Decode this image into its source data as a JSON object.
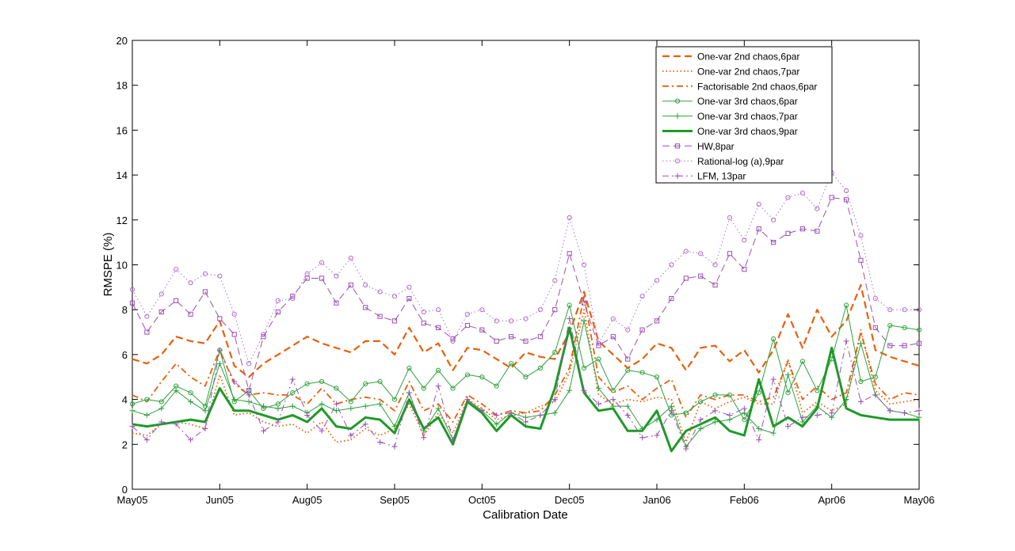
{
  "chart_data": {
    "type": "line",
    "title": "",
    "xlabel": "Calibration Date",
    "ylabel": "RMSPE (%)",
    "ylim": [
      0,
      20
    ],
    "xlim": [
      0,
      54
    ],
    "yticks": [
      0,
      2,
      4,
      6,
      8,
      10,
      12,
      14,
      16,
      18,
      20
    ],
    "xticks": [
      {
        "pos": 0,
        "label": "May05"
      },
      {
        "pos": 6,
        "label": "Jun05"
      },
      {
        "pos": 12,
        "label": "Aug05"
      },
      {
        "pos": 18,
        "label": "Sep05"
      },
      {
        "pos": 24,
        "label": "Oct05"
      },
      {
        "pos": 30,
        "label": "Dec05"
      },
      {
        "pos": 36,
        "label": "Jan06"
      },
      {
        "pos": 42,
        "label": "Feb06"
      },
      {
        "pos": 48,
        "label": "Apr06"
      },
      {
        "pos": 54,
        "label": "May06"
      }
    ],
    "x": [
      0,
      1,
      2,
      3,
      4,
      5,
      6,
      7,
      8,
      9,
      10,
      11,
      12,
      13,
      14,
      15,
      16,
      17,
      18,
      19,
      20,
      21,
      22,
      23,
      24,
      25,
      26,
      27,
      28,
      29,
      30,
      31,
      32,
      33,
      34,
      35,
      36,
      37,
      38,
      39,
      40,
      41,
      42,
      43,
      44,
      45,
      46,
      47,
      48,
      49,
      50,
      51,
      52,
      53,
      54
    ],
    "legend_position": "top-right",
    "grid": false,
    "series": [
      {
        "name": "One-var 2nd chaos,6par",
        "color": "#e8600c",
        "dash": "dashed",
        "marker": "none",
        "width": 2.2,
        "values": [
          5.8,
          5.6,
          6.0,
          6.8,
          6.6,
          6.5,
          7.5,
          5.5,
          5.0,
          5.6,
          6.0,
          6.4,
          6.8,
          6.5,
          6.3,
          6.1,
          6.6,
          6.6,
          6.0,
          7.2,
          6.1,
          6.5,
          5.3,
          6.3,
          6.2,
          5.8,
          5.4,
          6.1,
          5.9,
          5.8,
          7.0,
          8.8,
          6.6,
          6.0,
          5.4,
          5.8,
          6.5,
          6.3,
          5.3,
          6.3,
          6.4,
          5.7,
          6.2,
          5.2,
          6.2,
          7.8,
          6.3,
          8.0,
          6.8,
          7.5,
          9.1,
          6.2,
          5.9,
          5.7,
          5.5
        ]
      },
      {
        "name": "One-var 2nd chaos,7par",
        "color": "#e8600c",
        "dash": "dotted",
        "marker": "none",
        "width": 1.8,
        "values": [
          2.5,
          2.4,
          2.9,
          3.0,
          2.9,
          2.7,
          5.1,
          3.3,
          3.4,
          3.0,
          2.8,
          2.9,
          2.5,
          3.0,
          2.1,
          2.2,
          2.7,
          2.4,
          2.7,
          3.8,
          2.4,
          3.4,
          2.5,
          4.0,
          3.6,
          3.1,
          3.3,
          3.4,
          3.7,
          3.9,
          5.2,
          8.0,
          4.2,
          3.8,
          4.0,
          3.9,
          4.1,
          4.0,
          2.1,
          3.9,
          3.6,
          3.9,
          4.1,
          3.8,
          3.8,
          5.8,
          3.4,
          3.9,
          3.5,
          3.8,
          7.1,
          4.4,
          3.8,
          3.9,
          4.0
        ]
      },
      {
        "name": "Factorisable 2nd chaos,6par",
        "color": "#e8600c",
        "dash": "dashdot",
        "marker": "none",
        "width": 1.8,
        "values": [
          4.2,
          3.9,
          4.8,
          5.6,
          5.0,
          4.6,
          6.2,
          4.7,
          4.2,
          4.3,
          4.2,
          4.2,
          3.8,
          4.5,
          3.8,
          4.0,
          4.1,
          4.0,
          3.5,
          4.8,
          3.5,
          3.8,
          3.0,
          4.2,
          3.8,
          3.3,
          3.5,
          3.4,
          3.5,
          4.2,
          5.4,
          8.6,
          5.0,
          4.3,
          4.6,
          4.0,
          4.5,
          4.9,
          3.2,
          4.2,
          4.0,
          4.2,
          4.2,
          3.9,
          4.1,
          5.7,
          4.0,
          4.6,
          4.0,
          4.3,
          7.0,
          4.7,
          4.0,
          4.3,
          4.2
        ]
      },
      {
        "name": "One-var 3rd chaos,6par",
        "color": "#2ea23c",
        "dash": "solid",
        "marker": "circle",
        "width": 1.0,
        "values": [
          3.8,
          4.0,
          3.9,
          4.6,
          4.3,
          3.7,
          6.2,
          3.9,
          4.4,
          3.6,
          3.8,
          4.3,
          4.7,
          4.8,
          4.5,
          3.9,
          4.7,
          4.8,
          4.0,
          5.4,
          4.5,
          5.3,
          4.5,
          5.1,
          5.0,
          4.6,
          5.6,
          5.0,
          5.4,
          6.1,
          8.2,
          5.4,
          5.8,
          4.4,
          5.3,
          5.2,
          5.0,
          3.3,
          3.4,
          3.9,
          4.2,
          4.2,
          3.1,
          4.3,
          6.7,
          4.3,
          5.7,
          4.4,
          5.8,
          8.2,
          4.8,
          5.0,
          7.3,
          7.2,
          7.1
        ]
      },
      {
        "name": "One-var 3rd chaos,7par",
        "color": "#2ea23c",
        "dash": "solid",
        "marker": "plus",
        "width": 1.0,
        "values": [
          3.5,
          3.3,
          3.6,
          4.4,
          3.9,
          3.5,
          5.6,
          4.0,
          3.9,
          3.7,
          3.6,
          3.7,
          3.4,
          3.8,
          3.5,
          3.6,
          3.7,
          3.8,
          2.8,
          4.3,
          2.6,
          3.6,
          2.2,
          4.0,
          3.5,
          2.9,
          3.4,
          3.2,
          3.3,
          3.4,
          4.4,
          7.5,
          4.5,
          3.7,
          3.7,
          2.7,
          3.1,
          3.7,
          1.9,
          2.7,
          3.0,
          3.1,
          3.4,
          2.7,
          2.5,
          5.1,
          3.0,
          3.7,
          3.2,
          4.0,
          6.5,
          4.2,
          3.5,
          3.4,
          3.2
        ]
      },
      {
        "name": "One-var 3rd chaos,9par",
        "color": "#1e9a28",
        "dash": "solid",
        "marker": "none",
        "width": 3.0,
        "values": [
          2.9,
          2.8,
          2.9,
          3.0,
          3.1,
          3.0,
          4.5,
          3.5,
          3.5,
          3.3,
          3.1,
          3.3,
          3.0,
          3.6,
          2.8,
          2.7,
          3.2,
          3.1,
          2.5,
          4.0,
          2.7,
          3.2,
          2.0,
          3.9,
          3.4,
          2.6,
          3.3,
          2.8,
          2.7,
          4.5,
          7.2,
          4.3,
          3.5,
          3.6,
          2.6,
          2.6,
          3.5,
          1.7,
          2.6,
          2.9,
          3.2,
          2.6,
          2.4,
          4.9,
          2.8,
          3.2,
          2.8,
          3.6,
          6.3,
          3.6,
          3.3,
          3.2,
          3.1,
          3.1,
          3.1
        ]
      },
      {
        "name": "HW,8par",
        "color": "#9a4fb5",
        "dash": "dashed",
        "marker": "square",
        "width": 1.0,
        "values": [
          8.3,
          7.0,
          7.9,
          8.4,
          7.8,
          8.8,
          7.6,
          6.9,
          4.4,
          6.8,
          7.9,
          8.6,
          9.4,
          9.4,
          8.3,
          9.1,
          8.1,
          7.7,
          7.5,
          8.5,
          7.4,
          7.2,
          6.7,
          7.3,
          7.1,
          6.6,
          6.8,
          6.6,
          6.8,
          8.0,
          10.5,
          8.3,
          6.4,
          6.8,
          5.8,
          7.1,
          7.5,
          8.5,
          9.4,
          9.5,
          9.1,
          10.5,
          9.8,
          11.6,
          11.0,
          11.4,
          11.6,
          11.5,
          13.0,
          12.9,
          10.2,
          7.2,
          6.4,
          6.4,
          6.5
        ]
      },
      {
        "name": "Rational-log (a),9par",
        "color": "#b06ed0",
        "dash": "dotted",
        "marker": "circle",
        "width": 1.0,
        "values": [
          8.9,
          7.7,
          8.7,
          9.8,
          9.2,
          9.6,
          9.5,
          7.8,
          5.6,
          6.9,
          8.4,
          8.5,
          9.6,
          10.1,
          9.5,
          10.3,
          9.1,
          8.8,
          8.6,
          9.0,
          7.9,
          8.0,
          6.6,
          7.8,
          8.0,
          7.5,
          7.5,
          7.6,
          8.0,
          9.3,
          12.1,
          10.0,
          6.5,
          7.6,
          7.1,
          8.6,
          9.3,
          10.0,
          10.6,
          10.5,
          10.0,
          12.1,
          11.1,
          12.7,
          12.0,
          13.0,
          13.2,
          12.5,
          14.1,
          13.3,
          11.3,
          8.5,
          8.0,
          8.0,
          8.0
        ]
      },
      {
        "name": "LFM, 13par",
        "color": "#9a4fb5",
        "dash": "dashdot",
        "marker": "plus",
        "width": 1.0,
        "values": [
          2.8,
          2.2,
          3.0,
          2.9,
          2.2,
          2.7,
          6.2,
          4.8,
          4.2,
          2.6,
          3.0,
          4.9,
          3.3,
          2.6,
          3.8,
          2.4,
          2.9,
          2.1,
          1.9,
          4.3,
          2.3,
          4.6,
          2.2,
          4.0,
          3.5,
          3.3,
          3.4,
          3.0,
          3.3,
          4.0,
          7.6,
          4.4,
          3.8,
          4.0,
          3.3,
          2.3,
          2.4,
          3.5,
          1.8,
          3.1,
          3.5,
          3.3,
          3.6,
          2.2,
          4.9,
          2.8,
          3.2,
          3.3,
          3.4,
          6.6,
          3.9,
          4.2,
          3.5,
          3.4,
          3.5
        ]
      }
    ]
  }
}
